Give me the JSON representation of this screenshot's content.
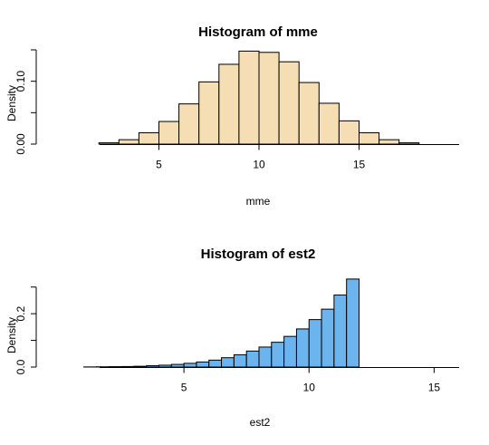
{
  "chart_data": [
    {
      "type": "bar",
      "title": "Histogram of mme",
      "xlabel": "mme",
      "ylabel": "Density",
      "bar_color": "#F5DEB3",
      "bin_width": 1,
      "bin_starts": [
        2,
        3,
        4,
        5,
        6,
        7,
        8,
        9,
        10,
        11,
        12,
        13,
        14,
        15,
        16,
        17
      ],
      "values": [
        0.002,
        0.007,
        0.018,
        0.036,
        0.064,
        0.099,
        0.127,
        0.148,
        0.146,
        0.131,
        0.098,
        0.065,
        0.037,
        0.018,
        0.007,
        0.002
      ],
      "xlim": [
        0,
        20
      ],
      "ylim": [
        0,
        0.15
      ],
      "xticks": [
        5,
        10,
        15
      ],
      "xtick_labels": [
        "5",
        "10",
        "15"
      ],
      "yticks": [
        0,
        0.05,
        0.1,
        0.15
      ],
      "ytick_labels": [
        "0.00",
        "",
        "0.10",
        ""
      ],
      "grid": false,
      "legend": "none"
    },
    {
      "type": "bar",
      "title": "Histogram of est2",
      "xlabel": "est2",
      "ylabel": "Density",
      "bar_color": "#6CB4EE",
      "bin_width": 0.5,
      "bin_starts": [
        1,
        1.5,
        2,
        2.5,
        3,
        3.5,
        4,
        4.5,
        5,
        5.5,
        6,
        6.5,
        7,
        7.5,
        8,
        8.5,
        9,
        9.5,
        10,
        10.5,
        11,
        11.5
      ],
      "values": [
        0.0005,
        0.001,
        0.0015,
        0.002,
        0.003,
        0.005,
        0.007,
        0.01,
        0.014,
        0.019,
        0.026,
        0.035,
        0.046,
        0.06,
        0.075,
        0.093,
        0.115,
        0.143,
        0.178,
        0.217,
        0.27,
        0.33
      ],
      "xlim": [
        0,
        16
      ],
      "ylim": [
        0,
        0.35
      ],
      "xticks": [
        5,
        10,
        15
      ],
      "xtick_labels": [
        "5",
        "10",
        "15"
      ],
      "yticks": [
        0,
        0.1,
        0.2,
        0.3
      ],
      "ytick_labels": [
        "0.0",
        "",
        "0.2",
        ""
      ],
      "grid": false,
      "legend": "none"
    }
  ]
}
